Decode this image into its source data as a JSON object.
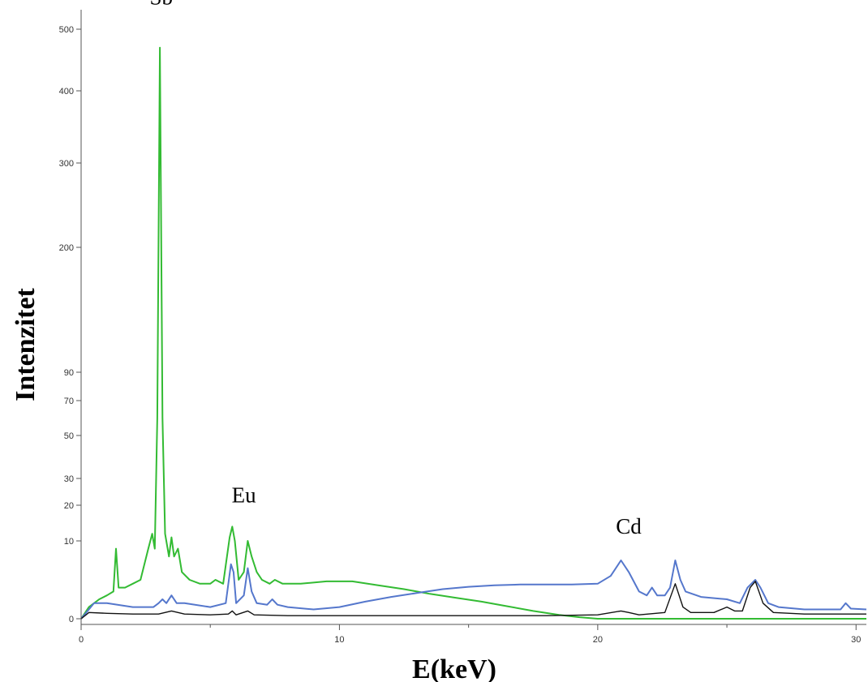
{
  "chart_data": {
    "type": "line",
    "xlabel": "E(keV)",
    "ylabel": "Intenzitet",
    "xlim": [
      0,
      30.4
    ],
    "x_ticks": [
      0,
      10,
      20,
      30
    ],
    "y_ticks": [
      {
        "label": "0",
        "value": 0
      },
      {
        "label": "10",
        "value": 10
      },
      {
        "label": "20",
        "value": 20
      },
      {
        "label": "30",
        "value": 30
      },
      {
        "label": "50",
        "value": 50
      },
      {
        "label": "70",
        "value": 70
      },
      {
        "label": "90",
        "value": 90
      },
      {
        "label": "200",
        "value": 200
      },
      {
        "label": "300",
        "value": 300
      },
      {
        "label": "400",
        "value": 400
      },
      {
        "label": "500",
        "value": 500
      }
    ],
    "grid": false,
    "series": [
      {
        "color": "#33bb33",
        "points": [
          [
            0,
            0
          ],
          [
            0.3,
            1.5
          ],
          [
            0.7,
            2.5
          ],
          [
            1.0,
            3.0
          ],
          [
            1.25,
            3.5
          ],
          [
            1.35,
            9.0
          ],
          [
            1.45,
            4.0
          ],
          [
            1.7,
            4.0
          ],
          [
            2.0,
            4.5
          ],
          [
            2.3,
            5.0
          ],
          [
            2.6,
            9.0
          ],
          [
            2.75,
            12.0
          ],
          [
            2.85,
            9.0
          ],
          [
            2.95,
            60.0
          ],
          [
            3.05,
            470.0
          ],
          [
            3.15,
            60.0
          ],
          [
            3.25,
            12.0
          ],
          [
            3.4,
            8.0
          ],
          [
            3.5,
            11.0
          ],
          [
            3.6,
            8.0
          ],
          [
            3.75,
            9.0
          ],
          [
            3.9,
            6.0
          ],
          [
            4.2,
            5.0
          ],
          [
            4.6,
            4.5
          ],
          [
            5.0,
            4.5
          ],
          [
            5.2,
            5.0
          ],
          [
            5.5,
            4.5
          ],
          [
            5.75,
            11.0
          ],
          [
            5.85,
            14.0
          ],
          [
            5.95,
            10.0
          ],
          [
            6.1,
            5.0
          ],
          [
            6.3,
            6.0
          ],
          [
            6.45,
            10.0
          ],
          [
            6.6,
            8.0
          ],
          [
            6.8,
            6.0
          ],
          [
            7.0,
            5.0
          ],
          [
            7.3,
            4.5
          ],
          [
            7.5,
            5.0
          ],
          [
            7.8,
            4.5
          ],
          [
            8.5,
            4.5
          ],
          [
            9.5,
            4.8
          ],
          [
            10.5,
            4.8
          ],
          [
            11.5,
            4.3
          ],
          [
            12.5,
            3.8
          ],
          [
            13.5,
            3.2
          ],
          [
            14.5,
            2.7
          ],
          [
            15.5,
            2.2
          ],
          [
            16.5,
            1.6
          ],
          [
            17.5,
            1.0
          ],
          [
            18.5,
            0.5
          ],
          [
            19.3,
            0.2
          ],
          [
            20.0,
            0
          ],
          [
            30.4,
            0
          ]
        ]
      },
      {
        "color": "#5577cc",
        "points": [
          [
            0,
            0
          ],
          [
            0.3,
            1.2
          ],
          [
            0.5,
            2.0
          ],
          [
            1.0,
            2.0
          ],
          [
            2.0,
            1.5
          ],
          [
            2.8,
            1.5
          ],
          [
            3.0,
            2.0
          ],
          [
            3.15,
            2.5
          ],
          [
            3.3,
            2.0
          ],
          [
            3.5,
            3.0
          ],
          [
            3.7,
            2.0
          ],
          [
            4.0,
            2.0
          ],
          [
            5.0,
            1.5
          ],
          [
            5.6,
            2.0
          ],
          [
            5.8,
            7.0
          ],
          [
            5.9,
            6.0
          ],
          [
            6.0,
            2.0
          ],
          [
            6.3,
            3.0
          ],
          [
            6.45,
            6.5
          ],
          [
            6.6,
            3.5
          ],
          [
            6.8,
            2.0
          ],
          [
            7.2,
            1.8
          ],
          [
            7.4,
            2.5
          ],
          [
            7.6,
            1.8
          ],
          [
            8.0,
            1.5
          ],
          [
            9.0,
            1.2
          ],
          [
            10.0,
            1.5
          ],
          [
            11.0,
            2.2
          ],
          [
            12.0,
            2.8
          ],
          [
            13.0,
            3.3
          ],
          [
            14.0,
            3.8
          ],
          [
            15.0,
            4.1
          ],
          [
            16.0,
            4.3
          ],
          [
            17.0,
            4.4
          ],
          [
            18.0,
            4.4
          ],
          [
            19.0,
            4.4
          ],
          [
            20.0,
            4.5
          ],
          [
            20.5,
            5.5
          ],
          [
            20.9,
            7.5
          ],
          [
            21.2,
            6.0
          ],
          [
            21.6,
            3.5
          ],
          [
            21.9,
            3.0
          ],
          [
            22.1,
            4.0
          ],
          [
            22.3,
            3.0
          ],
          [
            22.6,
            3.0
          ],
          [
            22.8,
            4.0
          ],
          [
            23.0,
            7.5
          ],
          [
            23.2,
            5.0
          ],
          [
            23.4,
            3.5
          ],
          [
            24.0,
            2.8
          ],
          [
            25.0,
            2.5
          ],
          [
            25.5,
            2.0
          ],
          [
            25.8,
            4.0
          ],
          [
            26.1,
            5.0
          ],
          [
            26.3,
            4.0
          ],
          [
            26.6,
            2.0
          ],
          [
            27.0,
            1.5
          ],
          [
            28.0,
            1.2
          ],
          [
            29.0,
            1.2
          ],
          [
            29.4,
            1.2
          ],
          [
            29.6,
            2.0
          ],
          [
            29.8,
            1.3
          ],
          [
            30.4,
            1.2
          ]
        ]
      },
      {
        "color": "#111111",
        "points": [
          [
            0,
            0
          ],
          [
            0.3,
            0.8
          ],
          [
            1.0,
            0.7
          ],
          [
            2.0,
            0.6
          ],
          [
            3.0,
            0.6
          ],
          [
            3.5,
            1.0
          ],
          [
            4.0,
            0.6
          ],
          [
            5.0,
            0.5
          ],
          [
            5.7,
            0.6
          ],
          [
            5.85,
            1.0
          ],
          [
            6.0,
            0.5
          ],
          [
            6.45,
            1.0
          ],
          [
            6.7,
            0.5
          ],
          [
            8.0,
            0.4
          ],
          [
            10.0,
            0.4
          ],
          [
            12.0,
            0.4
          ],
          [
            14.0,
            0.4
          ],
          [
            16.0,
            0.4
          ],
          [
            18.0,
            0.4
          ],
          [
            20.0,
            0.5
          ],
          [
            20.9,
            1.0
          ],
          [
            21.2,
            0.8
          ],
          [
            21.6,
            0.5
          ],
          [
            22.6,
            0.8
          ],
          [
            23.0,
            4.5
          ],
          [
            23.3,
            1.5
          ],
          [
            23.6,
            0.8
          ],
          [
            24.5,
            0.8
          ],
          [
            25.0,
            1.5
          ],
          [
            25.3,
            1.0
          ],
          [
            25.6,
            1.0
          ],
          [
            25.9,
            4.0
          ],
          [
            26.1,
            4.8
          ],
          [
            26.4,
            2.0
          ],
          [
            26.8,
            0.8
          ],
          [
            28.0,
            0.6
          ],
          [
            30.4,
            0.6
          ]
        ]
      }
    ],
    "annotations": [
      {
        "text": "Sb",
        "x": 3.1,
        "y": 540
      },
      {
        "text": "Eu",
        "x": 6.3,
        "y": 21
      },
      {
        "text": "Cd",
        "x": 21.2,
        "y": 12
      }
    ]
  }
}
